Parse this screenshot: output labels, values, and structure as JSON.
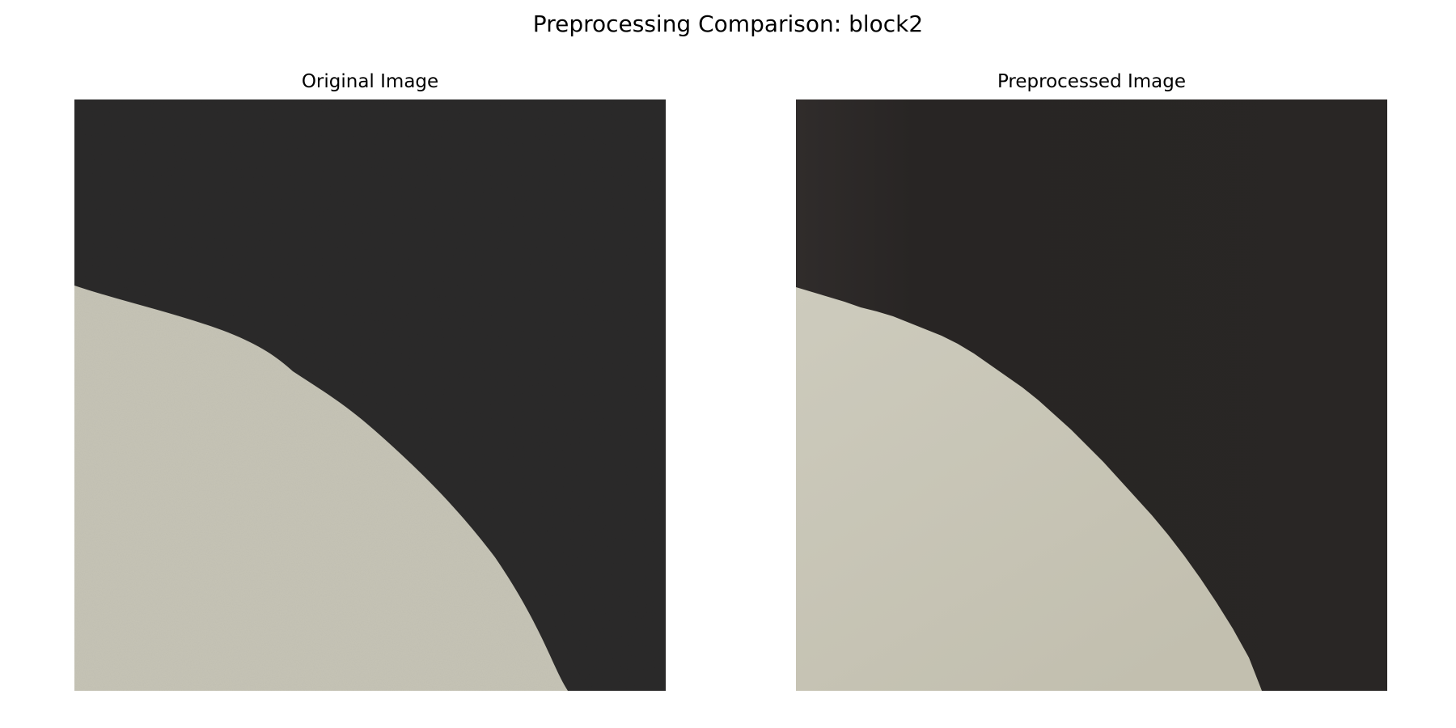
{
  "figure": {
    "title": "Preprocessing Comparison: block2"
  },
  "panels": [
    {
      "title": "Original Image"
    },
    {
      "title": "Preprocessed Image"
    }
  ],
  "colors": {
    "dark_region_original": "#2b2a2a",
    "light_region_original": "#c7c5b7",
    "dark_region_processed": "#2a2726",
    "light_region_processed": "#c6c3b4"
  }
}
